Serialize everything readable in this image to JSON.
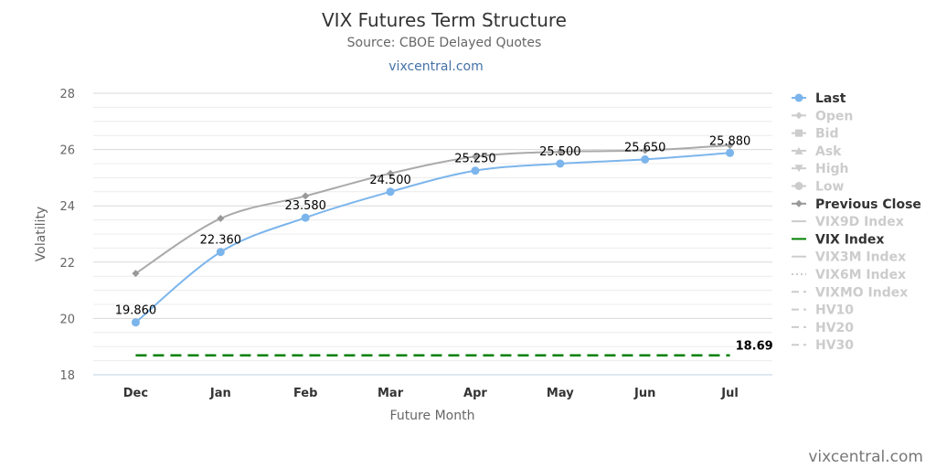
{
  "title": "VIX Futures Term Structure",
  "subtitle": "Source: CBOE Delayed Quotes",
  "link": "vixcentral.com",
  "watermark": "vixcentral.com",
  "chart_data": {
    "type": "line",
    "categories": [
      "Dec",
      "Jan",
      "Feb",
      "Mar",
      "Apr",
      "May",
      "Jun",
      "Jul"
    ],
    "xlabel": "Future Month",
    "ylabel": "Volatility",
    "ylim": [
      18,
      28
    ],
    "yticks": [
      "18",
      "20",
      "22",
      "24",
      "26",
      "28"
    ],
    "grid": true,
    "legend_position": "right",
    "series": [
      {
        "name": "Last",
        "color": "#7cb5ec",
        "marker": "circle",
        "values": [
          19.86,
          22.36,
          23.58,
          24.5,
          25.25,
          25.5,
          25.65,
          25.88
        ],
        "labels": [
          "19.860",
          "22.360",
          "23.580",
          "24.500",
          "25.250",
          "25.500",
          "25.650",
          "25.880"
        ]
      },
      {
        "name": "Previous Close",
        "color": "#aaaaaa",
        "marker": "diamond",
        "values": [
          21.6,
          23.55,
          24.35,
          25.15,
          25.75,
          25.92,
          25.97,
          26.15
        ]
      },
      {
        "name": "VIX Index",
        "color": "#008000",
        "dash": "dashed",
        "value": 18.69,
        "label": "18.69"
      }
    ],
    "legend": [
      {
        "name": "Last",
        "symbol": "circle",
        "active": true,
        "color": "#7cb5ec"
      },
      {
        "name": "Open",
        "symbol": "diamond",
        "active": false,
        "color": "#cccccc"
      },
      {
        "name": "Bid",
        "symbol": "square",
        "active": false,
        "color": "#cccccc"
      },
      {
        "name": "Ask",
        "symbol": "triangle",
        "active": false,
        "color": "#cccccc"
      },
      {
        "name": "High",
        "symbol": "triangle-down",
        "active": false,
        "color": "#cccccc"
      },
      {
        "name": "Low",
        "symbol": "circle",
        "active": false,
        "color": "#cccccc"
      },
      {
        "name": "Previous Close",
        "symbol": "diamond",
        "active": true,
        "color": "#999999"
      },
      {
        "name": "VIX9D Index",
        "symbol": "line",
        "active": false,
        "color": "#cccccc"
      },
      {
        "name": "VIX Index",
        "symbol": "line",
        "active": true,
        "color": "#008000"
      },
      {
        "name": "VIX3M Index",
        "symbol": "line",
        "active": false,
        "color": "#cccccc"
      },
      {
        "name": "VIX6M Index",
        "symbol": "dotted",
        "active": false,
        "color": "#cccccc"
      },
      {
        "name": "VIXMO Index",
        "symbol": "longdash",
        "active": false,
        "color": "#cccccc"
      },
      {
        "name": "HV10",
        "symbol": "longdash",
        "active": false,
        "color": "#cccccc"
      },
      {
        "name": "HV20",
        "symbol": "longdash",
        "active": false,
        "color": "#cccccc"
      },
      {
        "name": "HV30",
        "symbol": "longdash",
        "active": false,
        "color": "#cccccc"
      }
    ]
  }
}
